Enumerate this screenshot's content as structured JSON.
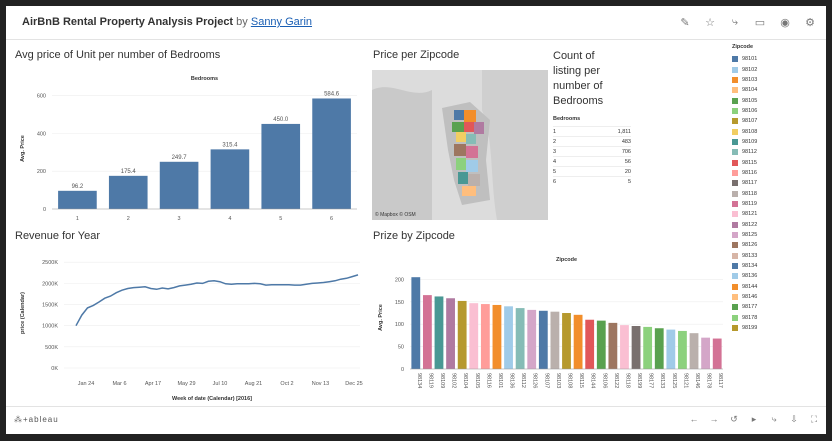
{
  "header": {
    "title": "AirBnB Rental Property Analysis Project",
    "by": "by",
    "author": "Sanny Garin",
    "icons": [
      "edit-icon",
      "star-icon",
      "share-icon",
      "comment-icon",
      "watch-icon",
      "settings-icon"
    ]
  },
  "panels": {
    "avg_price_title": "Avg price of Unit per number of Bedrooms",
    "price_zip_title": "Price per Zipcode",
    "count_title": [
      "Count of",
      "listing per",
      "number of",
      "Bedrooms"
    ],
    "revenue_title": "Revenue for Year",
    "prize_zip_title": "Prize by Zipcode",
    "map_credit": "© Mapbox © OSM"
  },
  "count_table": {
    "header": "Bedrooms",
    "rows": [
      {
        "b": "1",
        "c": "1,811"
      },
      {
        "b": "2",
        "c": "483"
      },
      {
        "b": "3",
        "c": "706"
      },
      {
        "b": "4",
        "c": "56"
      },
      {
        "b": "5",
        "c": "20"
      },
      {
        "b": "6",
        "c": "5"
      }
    ]
  },
  "legend": {
    "title": "Zipcode",
    "items": [
      {
        "label": "98101",
        "color": "#4e79a7"
      },
      {
        "label": "98102",
        "color": "#a0cbe8"
      },
      {
        "label": "98103",
        "color": "#f28e2b"
      },
      {
        "label": "98104",
        "color": "#ffbe7d"
      },
      {
        "label": "98105",
        "color": "#59a14f"
      },
      {
        "label": "98106",
        "color": "#8cd17d"
      },
      {
        "label": "98107",
        "color": "#b6992d"
      },
      {
        "label": "98108",
        "color": "#f1ce63"
      },
      {
        "label": "98109",
        "color": "#499894"
      },
      {
        "label": "98112",
        "color": "#86bcb6"
      },
      {
        "label": "98115",
        "color": "#e15759"
      },
      {
        "label": "98116",
        "color": "#ff9d9a"
      },
      {
        "label": "98117",
        "color": "#79706e"
      },
      {
        "label": "98118",
        "color": "#bab0ac"
      },
      {
        "label": "98119",
        "color": "#d37295"
      },
      {
        "label": "98121",
        "color": "#fabfd2"
      },
      {
        "label": "98122",
        "color": "#b07aa1"
      },
      {
        "label": "98125",
        "color": "#d4a6c8"
      },
      {
        "label": "98126",
        "color": "#9d7660"
      },
      {
        "label": "98133",
        "color": "#d7b5a6"
      },
      {
        "label": "98134",
        "color": "#4e79a7"
      },
      {
        "label": "98136",
        "color": "#a0cbe8"
      },
      {
        "label": "98144",
        "color": "#f28e2b"
      },
      {
        "label": "98146",
        "color": "#ffbe7d"
      },
      {
        "label": "98177",
        "color": "#59a14f"
      },
      {
        "label": "98178",
        "color": "#8cd17d"
      },
      {
        "label": "98199",
        "color": "#b6992d"
      }
    ]
  },
  "footer": {
    "brand": "⁂+ableau",
    "icons": [
      "undo-icon",
      "redo-icon",
      "revert-icon",
      "pause-icon",
      "share-icon",
      "download-icon",
      "fullscreen-icon"
    ]
  },
  "chart_data": [
    {
      "id": "avg_price",
      "type": "bar",
      "title": "Avg price of Unit per number of Bedrooms",
      "header": "Bedrooms",
      "categories": [
        "1",
        "2",
        "3",
        "4",
        "5",
        "6"
      ],
      "values": [
        96.2,
        175.4,
        249.7,
        315.4,
        450.0,
        584.6
      ],
      "labels": [
        "96.2",
        "175.4",
        "249.7",
        "315.4",
        "450.0",
        "584.6"
      ],
      "ylabel": "Avg. Price",
      "yticks": [
        "0",
        "200",
        "400",
        "600"
      ],
      "ylim": [
        0,
        640
      ],
      "color": "#4e79a7"
    },
    {
      "id": "revenue",
      "type": "line",
      "title": "Revenue for Year",
      "xlabel": "Week of date (Calendar) [2016]",
      "ylabel": "price (Calendar)",
      "xticks": [
        "Jan 24",
        "Mar 6",
        "Apr 17",
        "May 29",
        "Jul 10",
        "Aug 21",
        "Oct 2",
        "Nov 13",
        "Dec 25"
      ],
      "yticks": [
        "0K",
        "500K",
        "1000K",
        "1500K",
        "2000K",
        "2500K"
      ],
      "ylim": [
        0,
        2600
      ],
      "values": [
        1000,
        1250,
        1420,
        1480,
        1560,
        1650,
        1700,
        1780,
        1840,
        1880,
        1900,
        1910,
        1920,
        1880,
        1860,
        1890,
        1870,
        1900,
        1940,
        1960,
        1980,
        2010,
        2000,
        2050,
        2060,
        2040,
        1990,
        1980,
        1990,
        1990,
        1990,
        2000,
        1990,
        1960,
        1970,
        1970,
        1970,
        1970,
        1960,
        1960,
        1980,
        2000,
        2010,
        2020,
        2040,
        2060,
        2100,
        2120,
        2160,
        2200
      ],
      "color": "#4e79a7"
    },
    {
      "id": "prize_zip",
      "type": "bar",
      "title": "Prize by Zipcode",
      "header": "Zipcode",
      "ylabel": "Avg. Price",
      "yticks": [
        "0",
        "50",
        "100",
        "150",
        "200"
      ],
      "ylim": [
        0,
        230
      ],
      "categories": [
        "98134",
        "98119",
        "98109",
        "98102",
        "98104",
        "98105",
        "98116",
        "98101",
        "98136",
        "98112",
        "98126",
        "98107",
        "98103",
        "98108",
        "98115",
        "98144",
        "98106",
        "98122",
        "98118",
        "98199",
        "98177",
        "98133",
        "98125",
        "98121",
        "98146",
        "98178",
        "98117"
      ],
      "values": [
        205,
        165,
        162,
        158,
        152,
        147,
        145,
        143,
        140,
        136,
        132,
        130,
        128,
        125,
        121,
        110,
        108,
        103,
        98,
        96,
        94,
        91,
        88,
        85,
        80,
        70,
        68
      ],
      "colors": [
        "#4e79a7",
        "#d37295",
        "#499894",
        "#b07aa1",
        "#b6992d",
        "#fabfd2",
        "#ff9d9a",
        "#f28e2b",
        "#a0cbe8",
        "#86bcb6",
        "#d4a6c8",
        "#4e79a7",
        "#bab0ac",
        "#b6992d",
        "#f28e2b",
        "#e15759",
        "#59a14f",
        "#9d7660",
        "#fabfd2",
        "#79706e",
        "#8cd17d",
        "#59a14f",
        "#a0cbe8",
        "#8cd17d",
        "#bab0ac",
        "#d4a6c8",
        "#d37295"
      ]
    }
  ]
}
